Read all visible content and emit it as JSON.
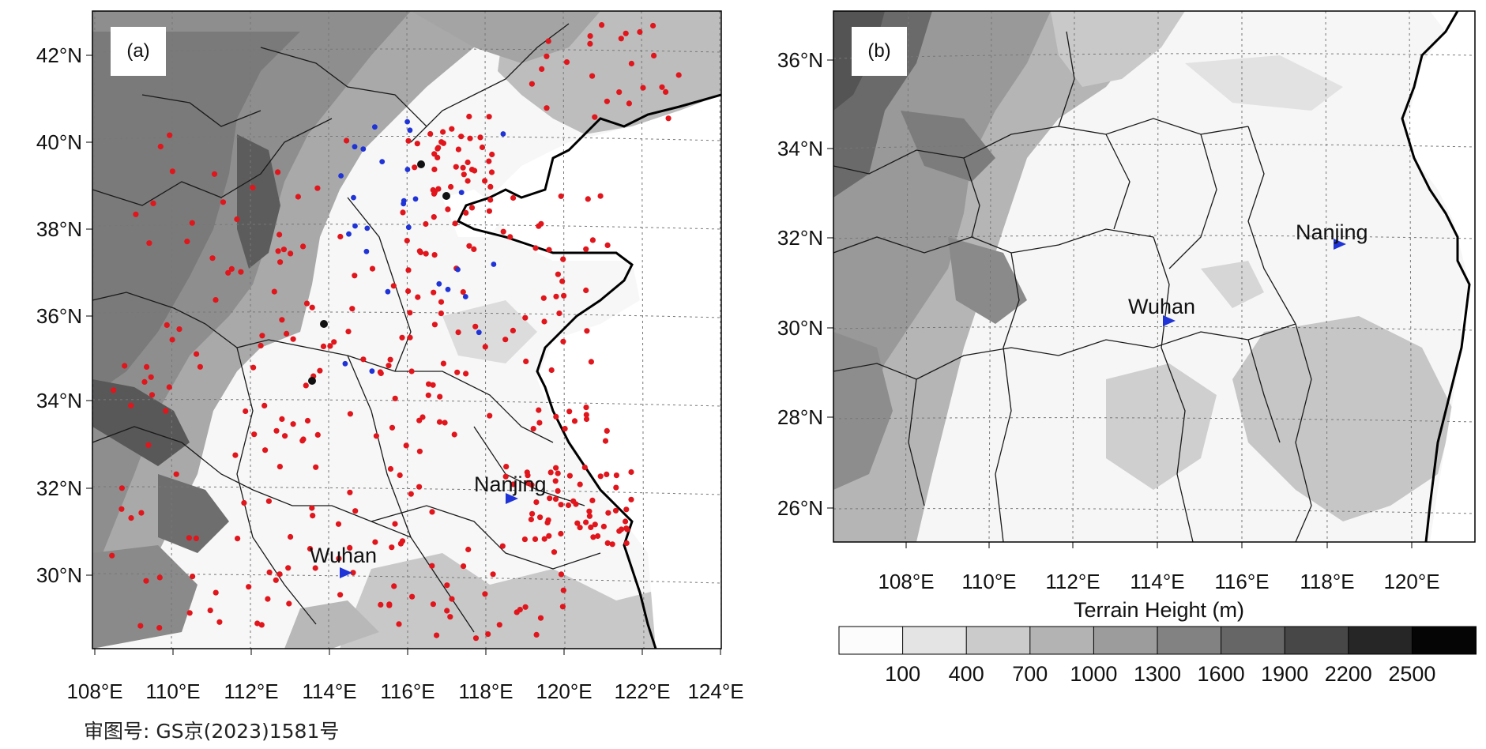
{
  "panels": [
    {
      "tag": "(a)",
      "lat_labels": [
        "42°N",
        "40°N",
        "38°N",
        "36°N",
        "34°N",
        "32°N",
        "30°N"
      ],
      "lon_labels": [
        "108°E",
        "110°E",
        "112°E",
        "114°E",
        "116°E",
        "118°E",
        "120°E",
        "122°E",
        "124°E"
      ],
      "cities": [
        {
          "name": "Nanjing",
          "symbol": "blue-triangle-icon"
        },
        {
          "name": "Wuhan",
          "symbol": "blue-triangle-icon"
        }
      ],
      "markers": [
        {
          "name": "red-station",
          "color": "#e0161c"
        },
        {
          "name": "blue-station",
          "color": "#1f33d6"
        },
        {
          "name": "black-station",
          "color": "#111111"
        }
      ]
    },
    {
      "tag": "(b)",
      "lat_labels": [
        "36°N",
        "34°N",
        "32°N",
        "30°N",
        "28°N",
        "26°N"
      ],
      "lon_labels": [
        "108°E",
        "110°E",
        "112°E",
        "114°E",
        "116°E",
        "118°E",
        "120°E"
      ],
      "cities": [
        {
          "name": "Nanjing",
          "symbol": "blue-triangle-icon"
        },
        {
          "name": "Wuhan",
          "symbol": "blue-triangle-icon"
        }
      ]
    }
  ],
  "colorbar": {
    "title": "Terrain Height (m)",
    "ticks": [
      "100",
      "400",
      "700",
      "1000",
      "1300",
      "1600",
      "1900",
      "2200",
      "2500"
    ],
    "colors": [
      "#fcfcfc",
      "#e4e4e4",
      "#cbcbcb",
      "#b3b3b3",
      "#9c9c9c",
      "#828282",
      "#666666",
      "#474747",
      "#262626",
      "#050505"
    ]
  },
  "map_credit": "审图号: GS京(2023)1581号",
  "colors": {
    "city_marker": "#1f33d6",
    "coast": "#000000",
    "border": "#1a1a1a",
    "grid": "#777777"
  }
}
